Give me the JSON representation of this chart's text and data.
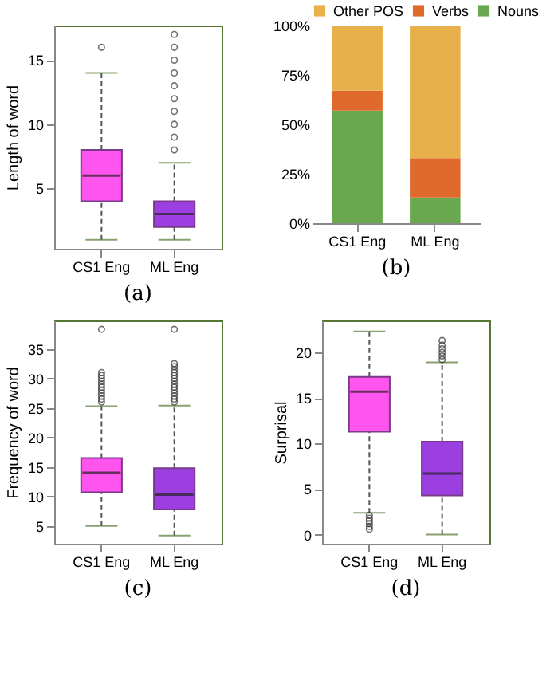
{
  "chart_data": [
    {
      "type": "box",
      "ylabel": "Length of word",
      "annotations": [
        "(a)"
      ],
      "categories": [
        "CS1 Eng",
        "ML Eng"
      ],
      "colors": [
        "#ff55ee",
        "#9b3fe0"
      ],
      "ylim": [
        0.3,
        17.7
      ],
      "yticks": [
        5,
        10,
        15
      ],
      "grid": false,
      "boxes": [
        {
          "low": 1,
          "q1": 4,
          "median": 6,
          "q3": 8,
          "high": 14,
          "outliers": [
            16
          ]
        },
        {
          "low": 1,
          "q1": 2,
          "median": 3,
          "q3": 4,
          "high": 7,
          "outliers": [
            8,
            9,
            10,
            11,
            12,
            13,
            14,
            15,
            16,
            17
          ]
        }
      ]
    },
    {
      "type": "bar",
      "stacked": true,
      "annotations": [
        "(b)"
      ],
      "categories": [
        "CS1 Eng",
        "ML Eng"
      ],
      "ylim": [
        0,
        100
      ],
      "yticks": [
        {
          "value": 0,
          "label": "0%"
        },
        {
          "value": 25,
          "label": "25%"
        },
        {
          "value": 50,
          "label": "50%"
        },
        {
          "value": 75,
          "label": "75%"
        },
        {
          "value": 100,
          "label": "100%"
        }
      ],
      "grid": false,
      "legend": "top",
      "series": [
        {
          "name": "Nouns",
          "color": "#6aa84f",
          "values": [
            57,
            13
          ]
        },
        {
          "name": "Verbs",
          "color": "#e06a2c",
          "values": [
            10,
            20
          ]
        },
        {
          "name": "Other POS",
          "color": "#e8b04a",
          "values": [
            33,
            67
          ]
        }
      ]
    },
    {
      "type": "box",
      "ylabel": "Frequency of word",
      "annotations": [
        "(c)"
      ],
      "categories": [
        "CS1 Eng",
        "ML Eng"
      ],
      "colors": [
        "#ff55ee",
        "#9b3fe0"
      ],
      "ylim": [
        2,
        39.8
      ],
      "yticks": [
        5,
        10,
        15,
        20,
        25,
        30,
        35
      ],
      "grid": false,
      "boxes": [
        {
          "low": 5,
          "q1": 10.7,
          "median": 14,
          "q3": 16.5,
          "high": 25.3,
          "outliers": [
            26,
            26.5,
            27,
            27.5,
            28,
            28.5,
            29,
            29.5,
            30,
            30.5,
            31,
            38.3
          ]
        },
        {
          "low": 3.4,
          "q1": 7.8,
          "median": 10.3,
          "q3": 14.8,
          "high": 25.4,
          "outliers": [
            26,
            26.5,
            27,
            27.5,
            28,
            28.5,
            29,
            29.5,
            30,
            30.5,
            31,
            31.5,
            32,
            32.5,
            38.3
          ]
        }
      ]
    },
    {
      "type": "box",
      "ylabel": "Surprisal",
      "annotations": [
        "(d)"
      ],
      "categories": [
        "CS1 Eng",
        "ML Eng"
      ],
      "colors": [
        "#ff55ee",
        "#9b3fe0"
      ],
      "ylim": [
        -1,
        23.5
      ],
      "yticks": [
        0,
        5,
        10,
        15,
        20
      ],
      "grid": false,
      "boxes": [
        {
          "low": 2.4,
          "q1": 11.3,
          "median": 15.7,
          "q3": 17.3,
          "high": 22.3,
          "outliers": [
            0.6,
            0.9,
            1.2,
            1.5,
            1.8,
            2.1
          ]
        },
        {
          "low": 0,
          "q1": 4.3,
          "median": 6.7,
          "q3": 10.2,
          "high": 18.9,
          "outliers": [
            19.2,
            19.6,
            20,
            20.4,
            20.8,
            21.3
          ]
        }
      ]
    }
  ]
}
